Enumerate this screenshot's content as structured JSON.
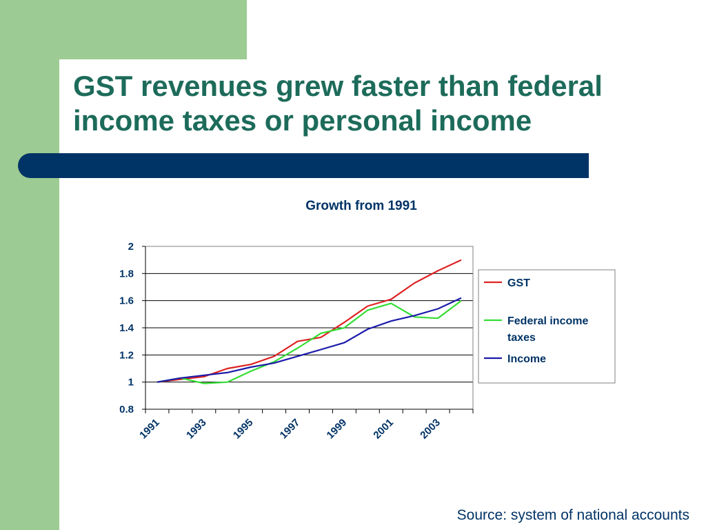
{
  "slide": {
    "title_lines": [
      "GST revenues grew faster than federal",
      "income taxes or personal income"
    ],
    "source": "Source: system of national accounts",
    "colors": {
      "accent_green": "#9ccb93",
      "title": "#1d6b5a",
      "navy": "#003366"
    }
  },
  "chart_data": {
    "type": "line",
    "title": "Growth from 1991",
    "xlabel": "",
    "ylabel": "",
    "x": [
      1991,
      1992,
      1993,
      1994,
      1995,
      1996,
      1997,
      1998,
      1999,
      2000,
      2001,
      2002,
      2003,
      2004
    ],
    "x_tick_labels": [
      "1991",
      "1993",
      "1995",
      "1997",
      "1999",
      "2001",
      "2003"
    ],
    "x_tick_label_values": [
      1991,
      1993,
      1995,
      1997,
      1999,
      2001,
      2003
    ],
    "ylim": [
      0.8,
      2
    ],
    "y_ticks": [
      "0.8",
      "1",
      "1.2",
      "1.4",
      "1.6",
      "1.8",
      "2"
    ],
    "y_tick_values": [
      0.8,
      1,
      1.2,
      1.4,
      1.6,
      1.8,
      2
    ],
    "grid": "horizontal",
    "legend_position": "right",
    "legend_label_lines": [
      [
        "GST"
      ],
      [
        "Federal income",
        "taxes"
      ],
      [
        "Income"
      ]
    ],
    "series": [
      {
        "name": "GST",
        "color": "#dd2222",
        "values": [
          1.0,
          1.02,
          1.04,
          1.1,
          1.13,
          1.19,
          1.3,
          1.33,
          1.44,
          1.56,
          1.61,
          1.73,
          1.82,
          1.9
        ]
      },
      {
        "name": "Federal income taxes",
        "color": "#33dd33",
        "values": [
          1.0,
          1.03,
          0.99,
          1.0,
          1.08,
          1.15,
          1.25,
          1.36,
          1.4,
          1.53,
          1.58,
          1.48,
          1.47,
          1.6
        ]
      },
      {
        "name": "Income",
        "color": "#1a1aaa",
        "values": [
          1.0,
          1.03,
          1.05,
          1.07,
          1.11,
          1.14,
          1.19,
          1.24,
          1.29,
          1.39,
          1.45,
          1.49,
          1.54,
          1.62
        ]
      }
    ]
  }
}
